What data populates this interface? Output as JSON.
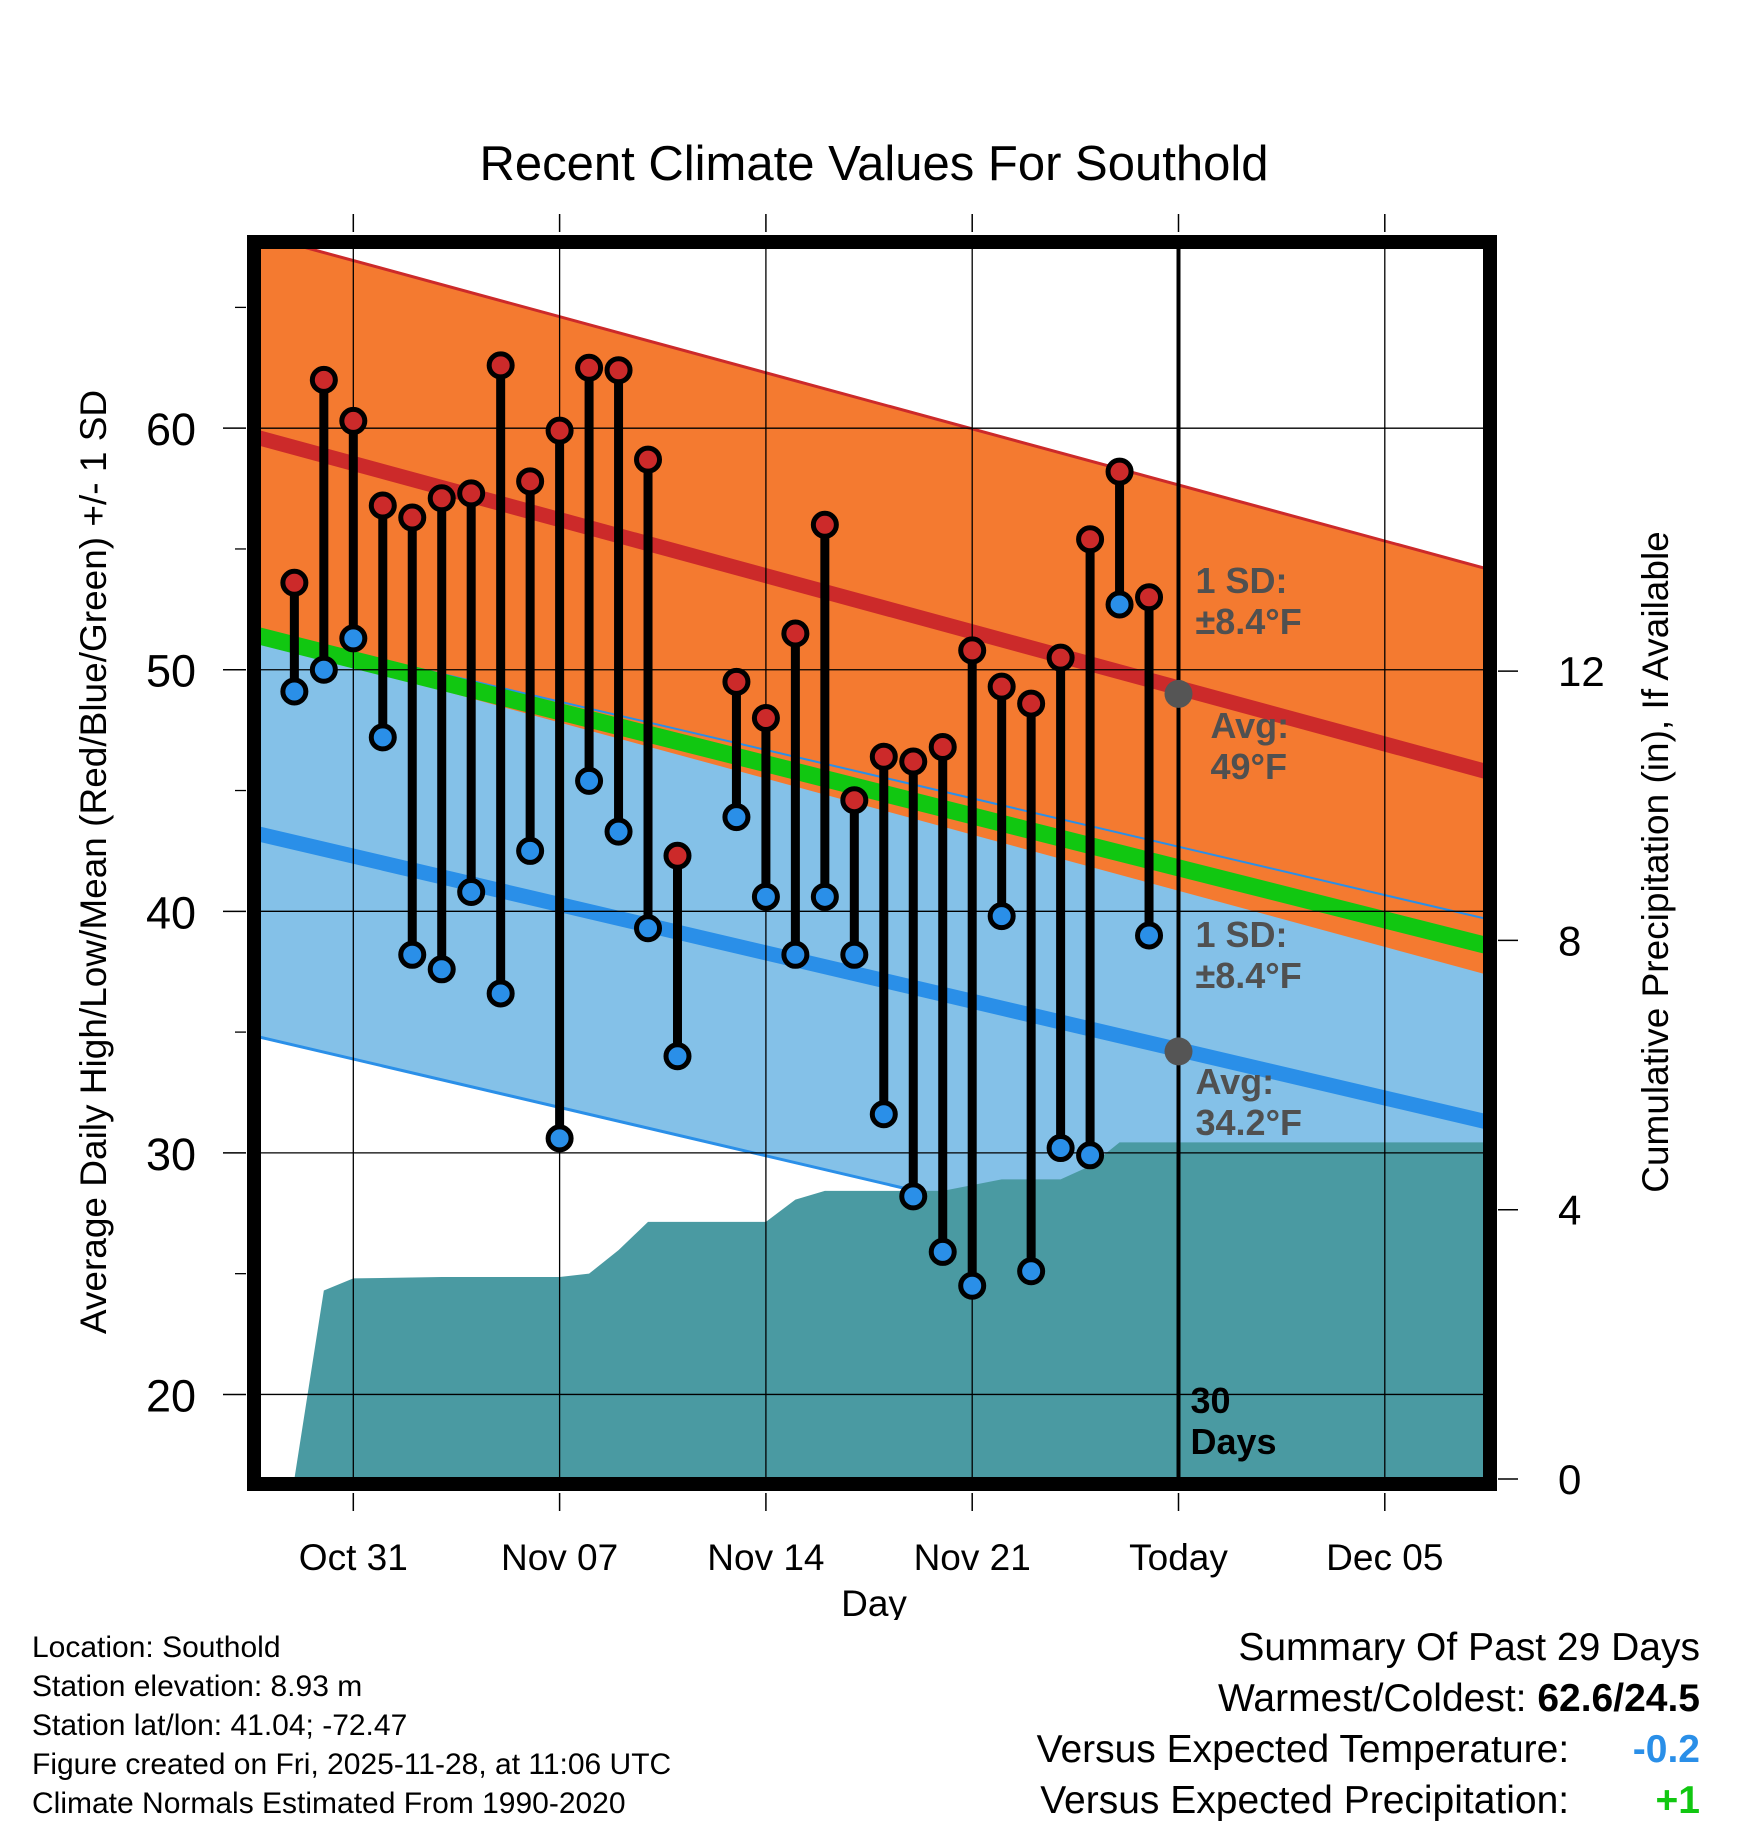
{
  "chart_data": {
    "type": "line",
    "title": "Recent Climate Values For Southold",
    "xlabel": "Day",
    "ylabel": "Average Daily High/Low/Mean (Red/Blue/Green) +/- 1 SD",
    "y2label": "Cumulative Precipitation (in), If Available",
    "xlim": [
      -3.2,
      38.4
    ],
    "ylim": [
      16.5,
      67.5
    ],
    "y2lim": [
      0,
      18.3
    ],
    "x_ticks": [
      {
        "x": 0,
        "label": "Oct 31"
      },
      {
        "x": 7,
        "label": "Nov 07"
      },
      {
        "x": 14,
        "label": "Nov 14"
      },
      {
        "x": 21,
        "label": "Nov 21"
      },
      {
        "x": 28,
        "label": "Today"
      },
      {
        "x": 35,
        "label": "Dec 05"
      }
    ],
    "y_ticks": [
      20,
      30,
      40,
      50,
      60
    ],
    "y2_ticks": [
      0,
      4,
      8,
      12
    ],
    "normal_high": {
      "start": [
        -3.2,
        59.6
      ],
      "end": [
        38.4,
        45.8
      ],
      "sd": 8.4
    },
    "normal_low": {
      "start": [
        -3.2,
        43.2
      ],
      "end": [
        38.4,
        31.3
      ],
      "sd": 8.4
    },
    "normal_mean": {
      "start": [
        -3.2,
        51.4
      ],
      "end": [
        38.4,
        38.6
      ]
    },
    "days": [
      -2,
      -1,
      0,
      1,
      2,
      3,
      4,
      5,
      6,
      7,
      8,
      9,
      10,
      11,
      13,
      14,
      15,
      16,
      17,
      18,
      19,
      20,
      21,
      22,
      23,
      24,
      25,
      26,
      27
    ],
    "highs": [
      53.6,
      62.0,
      60.3,
      56.8,
      56.3,
      57.1,
      57.3,
      62.6,
      57.8,
      59.9,
      62.5,
      62.4,
      58.7,
      42.3,
      49.5,
      48.0,
      51.5,
      56.0,
      44.6,
      46.4,
      46.2,
      46.8,
      50.8,
      49.3,
      48.6,
      50.5,
      55.4,
      58.2,
      53.0
    ],
    "lows": [
      49.1,
      50.0,
      51.3,
      47.2,
      38.2,
      37.6,
      40.8,
      36.6,
      42.5,
      30.6,
      45.4,
      43.3,
      39.3,
      34.0,
      43.9,
      40.6,
      38.2,
      40.6,
      38.2,
      31.6,
      28.2,
      25.9,
      24.5,
      39.8,
      25.1,
      30.2,
      29.9,
      52.7,
      39.0
    ],
    "precip_x": [
      -2.0,
      -1.0,
      0.0,
      3.0,
      7.0,
      8.0,
      9.0,
      10.0,
      14.0,
      15.0,
      16.0,
      20.0,
      22.0,
      23.5,
      24.0,
      25.0,
      26.0,
      38.4
    ],
    "precip_cumulative": [
      0.0,
      2.8,
      2.98,
      3.0,
      3.0,
      3.05,
      3.4,
      3.82,
      3.82,
      4.15,
      4.28,
      4.28,
      4.45,
      4.45,
      4.45,
      4.65,
      5.0,
      5.0
    ],
    "today_x": 28,
    "today_label": "30 Days",
    "high_sd_label": "1 SD: ±8.4°F",
    "high_avg_label": "Avg: 49°F",
    "low_sd_label": "1 SD: ±8.4°F",
    "low_avg_label": "Avg: 34.2°F",
    "high_avg_value": 49.0,
    "low_avg_value": 34.2,
    "colors": {
      "high_band": "#f47a30",
      "high_line": "#cc2a2a",
      "low_band": "#84c1e8",
      "low_line": "#2a8fe8",
      "mean_line": "#11c711",
      "overlap": "#9b1616",
      "precip": "#4a9aa2",
      "high_dot": "#cc2a2a",
      "low_dot": "#2a8fe8",
      "avg_marker": "#555555",
      "annotation": "#505050"
    }
  },
  "info": {
    "location": "Location: Southold",
    "elevation": "Station elevation: 8.93 m",
    "latlon": "Station lat/lon: 41.04; -72.47",
    "created": "Figure created on Fri, 2025-11-28, at 11:06 UTC",
    "normals": "Climate Normals Estimated From 1990-2020"
  },
  "summary": {
    "title": "Summary Of Past 29 Days",
    "warm_cold_label": "Warmest/Coldest:",
    "warm_cold_value": "62.6/24.5",
    "temp_label": "Versus Expected Temperature:",
    "temp_value": "-0.2",
    "temp_color": "#2a8fe8",
    "precip_label": "Versus Expected Precipitation:",
    "precip_value": "+1",
    "precip_color": "#11c711"
  }
}
